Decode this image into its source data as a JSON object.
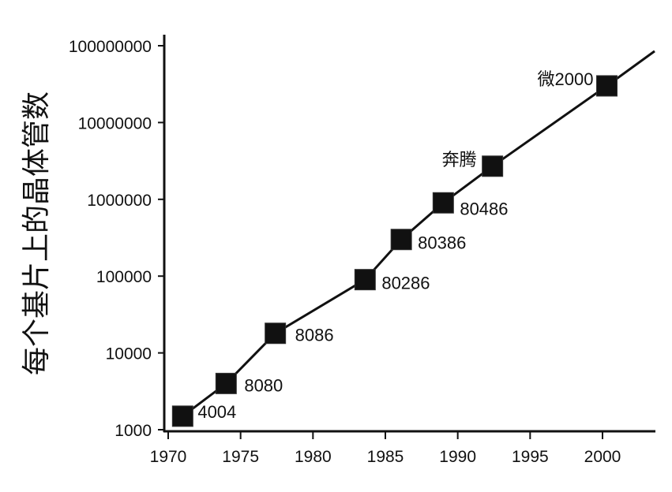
{
  "chart_data": {
    "type": "line",
    "title": "",
    "xlabel": "",
    "ylabel": "每个基片上的晶体管数",
    "y_scale": "log",
    "xlim": [
      1970,
      2004
    ],
    "ylim": [
      1000,
      100000000
    ],
    "x_ticks": [
      1970,
      1975,
      1980,
      1985,
      1990,
      1995,
      2000
    ],
    "x_tick_labels": [
      "1970",
      "1975",
      "1980",
      "1985",
      "1990",
      "1995",
      "2000"
    ],
    "y_ticks": [
      1000,
      10000,
      100000,
      1000000,
      10000000,
      100000000
    ],
    "y_tick_labels": [
      "1000",
      "10000",
      "100000",
      "1000000",
      "10000000",
      "100000000"
    ],
    "grid": false,
    "legend": "none",
    "series": [
      {
        "name": "",
        "marker": "square",
        "color": "#111111",
        "points": [
          {
            "x": 1971.0,
            "y": 1500,
            "label": "4004"
          },
          {
            "x": 1974.0,
            "y": 4000,
            "label": "8080"
          },
          {
            "x": 1977.4,
            "y": 18000,
            "label": "8086"
          },
          {
            "x": 1983.6,
            "y": 90000,
            "label": "80286"
          },
          {
            "x": 1986.1,
            "y": 300000,
            "label": "80386"
          },
          {
            "x": 1989.0,
            "y": 900000,
            "label": "80486"
          },
          {
            "x": 1992.4,
            "y": 2700000,
            "label": "奔腾"
          },
          {
            "x": 2000.3,
            "y": 30000000,
            "label": "微2000"
          }
        ]
      }
    ],
    "trend_end": {
      "x": 2003.6,
      "y": 85000000
    }
  }
}
